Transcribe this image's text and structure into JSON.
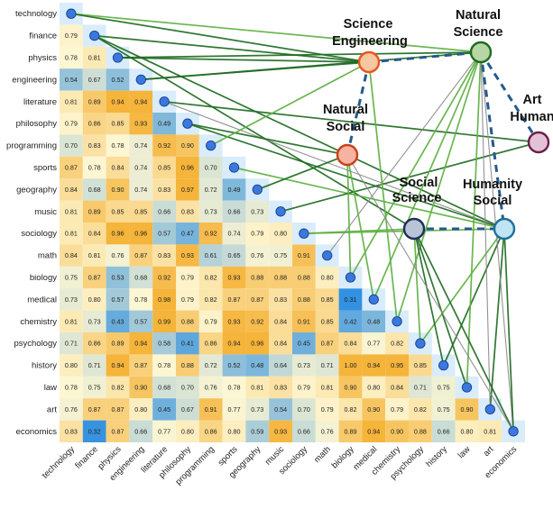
{
  "chart_data": {
    "type": "heatmap",
    "title": "",
    "xlabel": "",
    "ylabel": "",
    "categories": [
      "technology",
      "finance",
      "physics",
      "engineering",
      "literature",
      "philosophy",
      "programming",
      "sports",
      "geography",
      "music",
      "sociology",
      "math",
      "biology",
      "medical",
      "chemistry",
      "psychology",
      "history",
      "law",
      "art",
      "economics"
    ],
    "matrix": [
      [],
      [
        0.79
      ],
      [
        0.78,
        0.81
      ],
      [
        0.54,
        0.67,
        0.52
      ],
      [
        0.81,
        0.89,
        0.94,
        0.94
      ],
      [
        0.79,
        0.86,
        0.85,
        0.93,
        0.49
      ],
      [
        0.7,
        0.83,
        0.78,
        0.74,
        0.92,
        0.9
      ],
      [
        0.87,
        0.78,
        0.84,
        0.74,
        0.85,
        0.96,
        0.7
      ],
      [
        0.84,
        0.68,
        0.9,
        0.74,
        0.83,
        0.97,
        0.72,
        0.49
      ],
      [
        0.81,
        0.89,
        0.85,
        0.85,
        0.66,
        0.83,
        0.73,
        0.66,
        0.73
      ],
      [
        0.81,
        0.84,
        0.96,
        0.96,
        0.57,
        0.47,
        0.92,
        0.74,
        0.79,
        0.8
      ],
      [
        0.84,
        0.81,
        0.76,
        0.87,
        0.83,
        0.93,
        0.61,
        0.65,
        0.76,
        0.75,
        0.91
      ],
      [
        0.75,
        0.87,
        0.53,
        0.68,
        0.92,
        0.79,
        0.82,
        0.93,
        0.88,
        0.88,
        0.88,
        0.8
      ],
      [
        0.73,
        0.8,
        0.57,
        0.78,
        0.98,
        0.79,
        0.82,
        0.87,
        0.87,
        0.83,
        0.88,
        0.85,
        0.31
      ],
      [
        0.81,
        0.73,
        0.43,
        0.57,
        0.99,
        0.88,
        0.79,
        0.93,
        0.92,
        0.84,
        0.91,
        0.85,
        0.42,
        0.48
      ],
      [
        0.71,
        0.86,
        0.89,
        0.94,
        0.58,
        0.41,
        0.86,
        0.94,
        0.96,
        0.84,
        0.45,
        0.87,
        0.84,
        0.77,
        0.82
      ],
      [
        0.8,
        0.71,
        0.94,
        0.87,
        0.78,
        0.88,
        0.72,
        0.52,
        0.48,
        0.64,
        0.73,
        0.71,
        1.0,
        0.94,
        0.95,
        0.85
      ],
      [
        0.78,
        0.75,
        0.82,
        0.9,
        0.68,
        0.7,
        0.76,
        0.78,
        0.81,
        0.83,
        0.79,
        0.81,
        0.9,
        0.8,
        0.84,
        0.71,
        0.75
      ],
      [
        0.76,
        0.87,
        0.87,
        0.8,
        0.45,
        0.67,
        0.91,
        0.77,
        0.73,
        0.54,
        0.7,
        0.79,
        0.82,
        0.9,
        0.79,
        0.82,
        0.75,
        0.9
      ],
      [
        0.83,
        0.32,
        0.87,
        0.66,
        0.77,
        0.8,
        0.86,
        0.8,
        0.59,
        0.93,
        0.66,
        0.76,
        0.89,
        0.94,
        0.9,
        0.88,
        0.66,
        0.8,
        0.81
      ]
    ],
    "color_scale": {
      "low": "#2e8fe0",
      "mid": "#fdf6d2",
      "high": "#f5b43a"
    },
    "graph": {
      "nodes": [
        {
          "name": "Science Engineering",
          "label_lines": [
            "Science",
            "Engineering"
          ],
          "fill": "#f6c7a0",
          "stroke": "#e8561c"
        },
        {
          "name": "Natural Science",
          "label_lines": [
            "Natural",
            "Science"
          ],
          "fill": "#b7d6a6",
          "stroke": "#1f6b1f"
        },
        {
          "name": "Art Humanity",
          "label_lines": [
            "Art",
            "Human"
          ],
          "fill": "#e3c2d8",
          "stroke": "#6b1f4a"
        },
        {
          "name": "Natural Social",
          "label_lines": [
            "Natural",
            "Social"
          ],
          "fill": "#f6b4a0",
          "stroke": "#c8401c"
        },
        {
          "name": "Social Science",
          "label_lines": [
            "Social",
            "Science"
          ],
          "fill": "#b9c4d6",
          "stroke": "#1f2e5a"
        },
        {
          "name": "Humanity Social",
          "label_lines": [
            "Humanity",
            "Social"
          ],
          "fill": "#bfe4f4",
          "stroke": "#1f6f9a"
        }
      ],
      "cluster_links": [
        [
          "Science Engineering",
          "Natural Science"
        ],
        [
          "Natural Science",
          "Art Humanity"
        ],
        [
          "Science Engineering",
          "Natural Social"
        ],
        [
          "Social Science",
          "Humanity Social"
        ],
        [
          "Natural Science",
          "Humanity Social"
        ]
      ],
      "edges": [
        [
          "technology",
          "Natural Science",
          "lightgreen"
        ],
        [
          "technology",
          "Science Engineering",
          "darkgreen"
        ],
        [
          "finance",
          "Science Engineering",
          "darkgreen"
        ],
        [
          "finance",
          "Social Science",
          "darkgreen"
        ],
        [
          "finance",
          "Humanity Social",
          "darkgreen"
        ],
        [
          "physics",
          "Science Engineering",
          "darkgreen"
        ],
        [
          "physics",
          "Natural Science",
          "darkgreen"
        ],
        [
          "engineering",
          "Science Engineering",
          "darkgreen"
        ],
        [
          "engineering",
          "Natural Science",
          "darkgreen"
        ],
        [
          "literature",
          "Art Humanity",
          "darkgreen"
        ],
        [
          "literature",
          "Humanity Social",
          "gray"
        ],
        [
          "philosophy",
          "Natural Social",
          "darkgreen"
        ],
        [
          "philosophy",
          "Humanity Social",
          "darkgreen"
        ],
        [
          "programming",
          "Science Engineering",
          "lightgreen"
        ],
        [
          "sports",
          "Humanity Social",
          "lightgreen"
        ],
        [
          "geography",
          "Natural Social",
          "darkgreen"
        ],
        [
          "music",
          "Art Humanity",
          "darkgreen"
        ],
        [
          "sociology",
          "Social Science",
          "lightgreen"
        ],
        [
          "sociology",
          "Humanity Social",
          "lightgreen"
        ],
        [
          "math",
          "Natural Science",
          "gray"
        ],
        [
          "biology",
          "Natural Science",
          "lightgreen"
        ],
        [
          "biology",
          "Natural Social",
          "lightgreen"
        ],
        [
          "medical",
          "Natural Science",
          "lightgreen"
        ],
        [
          "medical",
          "Natural Social",
          "lightgreen"
        ],
        [
          "chemistry",
          "Natural Science",
          "lightgreen"
        ],
        [
          "chemistry",
          "Science Engineering",
          "lightgreen"
        ],
        [
          "psychology",
          "Social Science",
          "lightgreen"
        ],
        [
          "psychology",
          "Humanity Social",
          "lightgreen"
        ],
        [
          "history",
          "Social Science",
          "darkgreen"
        ],
        [
          "history",
          "Humanity Social",
          "darkgreen"
        ],
        [
          "law",
          "Social Science",
          "darkgreen"
        ],
        [
          "law",
          "Natural Science",
          "lightgreen"
        ],
        [
          "art",
          "Humanity Social",
          "darkgreen"
        ],
        [
          "art",
          "Natural Science",
          "gray"
        ],
        [
          "economics",
          "Natural Science",
          "gray"
        ],
        [
          "economics",
          "Social Science",
          "darkgreen"
        ],
        [
          "economics",
          "Humanity Social",
          "darkgreen"
        ],
        [
          "economics",
          "Natural Social",
          "gray"
        ]
      ],
      "edge_colors": {
        "darkgreen": "#1e6b22",
        "lightgreen": "#5db041",
        "gray": "#8a8a8a"
      },
      "leaf_color": "#3a78e0",
      "link_color": "#245a8c"
    }
  }
}
